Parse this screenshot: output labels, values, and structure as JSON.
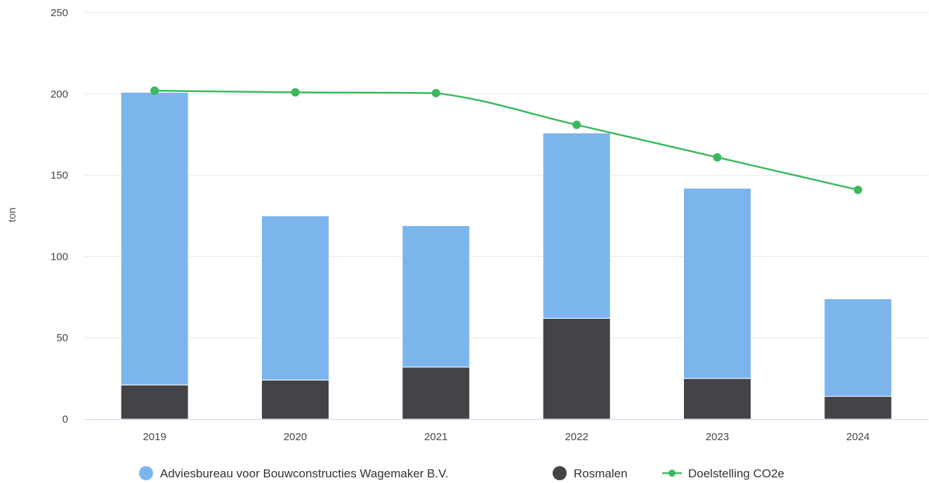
{
  "chart_data": {
    "type": "bar",
    "stacked": true,
    "categories": [
      "2019",
      "2020",
      "2021",
      "2022",
      "2023",
      "2024"
    ],
    "ylabel": "ton",
    "ylim": [
      0,
      250
    ],
    "yticks": [
      0,
      50,
      100,
      150,
      200,
      250
    ],
    "grid": true,
    "legend_position": "bottom",
    "series": [
      {
        "name": "Rosmalen",
        "kind": "bar",
        "color": "#434348",
        "values": [
          21,
          24,
          32,
          62,
          25,
          14
        ]
      },
      {
        "name": "Adviesbureau voor Bouwconstructies Wagemaker B.V.",
        "kind": "bar",
        "color": "#7cb5ec",
        "values": [
          180,
          101,
          87,
          114,
          117,
          60
        ]
      },
      {
        "name": "Doelstelling CO2e",
        "kind": "line",
        "color": "#3cb95e",
        "values": [
          202,
          201,
          200.5,
          181,
          161,
          141
        ]
      }
    ],
    "legend_order": [
      "Adviesbureau voor Bouwconstructies Wagemaker B.V.",
      "Rosmalen",
      "Doelstelling CO2e"
    ]
  }
}
